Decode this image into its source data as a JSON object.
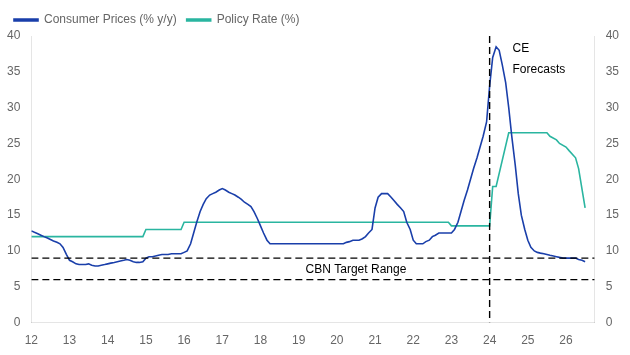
{
  "chart_data": {
    "type": "line",
    "series": [
      {
        "name": "Consumer Prices (% y/y)",
        "color": "#1a3faa",
        "x": [
          12.0,
          12.08,
          12.17,
          12.25,
          12.33,
          12.42,
          12.5,
          12.58,
          12.67,
          12.75,
          12.83,
          12.92,
          13.0,
          13.08,
          13.17,
          13.25,
          13.33,
          13.42,
          13.5,
          13.58,
          13.67,
          13.75,
          13.83,
          13.92,
          14.0,
          14.08,
          14.17,
          14.25,
          14.33,
          14.42,
          14.5,
          14.58,
          14.67,
          14.75,
          14.83,
          14.92,
          15.0,
          15.08,
          15.17,
          15.25,
          15.33,
          15.42,
          15.5,
          15.58,
          15.67,
          15.75,
          15.83,
          15.92,
          16.0,
          16.08,
          16.17,
          16.25,
          16.33,
          16.42,
          16.5,
          16.58,
          16.67,
          16.75,
          16.83,
          16.92,
          17.0,
          17.08,
          17.17,
          17.25,
          17.33,
          17.42,
          17.5,
          17.58,
          17.67,
          17.75,
          17.83,
          17.92,
          18.0,
          18.08,
          18.17,
          18.25,
          18.33,
          18.42,
          18.5,
          18.58,
          18.67,
          18.75,
          18.83,
          18.92,
          19.0,
          19.08,
          19.17,
          19.25,
          19.33,
          19.42,
          19.5,
          19.58,
          19.67,
          19.75,
          19.83,
          19.92,
          20.0,
          20.08,
          20.17,
          20.25,
          20.33,
          20.42,
          20.5,
          20.58,
          20.67,
          20.75,
          20.83,
          20.92,
          21.0,
          21.08,
          21.17,
          21.25,
          21.33,
          21.42,
          21.5,
          21.58,
          21.67,
          21.75,
          21.83,
          21.92,
          22.0,
          22.08,
          22.17,
          22.25,
          22.33,
          22.42,
          22.5,
          22.58,
          22.67,
          22.75,
          22.83,
          22.92,
          23.0,
          23.08,
          23.17,
          23.25,
          23.33,
          23.42,
          23.5,
          23.58,
          23.67,
          23.75,
          23.83,
          23.92,
          24.0,
          24.08,
          24.17,
          24.25,
          24.33,
          24.42,
          24.5,
          24.58,
          24.67,
          24.75,
          24.83,
          24.92,
          25.0,
          25.08,
          25.17,
          25.25,
          25.33,
          25.42,
          25.5,
          25.58,
          25.67,
          25.75,
          25.83,
          25.92,
          26.0,
          26.08,
          26.17,
          26.25,
          26.33,
          26.42,
          26.5
        ],
        "values": [
          12.8,
          12.6,
          12.4,
          12.2,
          12.0,
          11.8,
          11.6,
          11.4,
          11.2,
          11.0,
          10.5,
          9.5,
          8.7,
          8.5,
          8.2,
          8.1,
          8.1,
          8.1,
          8.2,
          8.0,
          7.9,
          7.9,
          8.0,
          8.1,
          8.2,
          8.3,
          8.4,
          8.5,
          8.6,
          8.7,
          8.8,
          8.7,
          8.5,
          8.4,
          8.4,
          8.5,
          9.0,
          9.2,
          9.2,
          9.3,
          9.4,
          9.5,
          9.5,
          9.5,
          9.6,
          9.6,
          9.6,
          9.6,
          9.8,
          10.0,
          11.0,
          12.5,
          14.0,
          15.5,
          16.5,
          17.3,
          17.8,
          18.0,
          18.2,
          18.5,
          18.7,
          18.5,
          18.2,
          18.0,
          17.8,
          17.5,
          17.2,
          16.8,
          16.5,
          16.2,
          15.5,
          14.5,
          13.5,
          12.5,
          11.5,
          11.0,
          11.0,
          11.0,
          11.0,
          11.0,
          11.0,
          11.0,
          11.0,
          11.0,
          11.0,
          11.0,
          11.0,
          11.0,
          11.0,
          11.0,
          11.0,
          11.0,
          11.0,
          11.0,
          11.0,
          11.0,
          11.0,
          11.0,
          11.0,
          11.2,
          11.3,
          11.5,
          11.5,
          11.5,
          11.7,
          12.0,
          12.5,
          13.0,
          16.0,
          17.5,
          18.0,
          18.0,
          18.0,
          17.5,
          17.0,
          16.5,
          16.0,
          15.5,
          14.0,
          13.0,
          11.5,
          11.0,
          11.0,
          11.0,
          11.3,
          11.5,
          12.0,
          12.2,
          12.5,
          12.5,
          12.5,
          12.5,
          12.5,
          13.0,
          14.0,
          15.5,
          17.0,
          18.5,
          20.0,
          21.5,
          23.0,
          24.5,
          26.0,
          28.0,
          33.0,
          37.0,
          38.5,
          38.0,
          36.0,
          33.5,
          30.0,
          26.0,
          22.0,
          18.0,
          15.0,
          13.0,
          11.5,
          10.5,
          10.0,
          9.8,
          9.7,
          9.6,
          9.5,
          9.4,
          9.3,
          9.2,
          9.1,
          9.0,
          9.0,
          9.0,
          9.0,
          9.0,
          8.8,
          8.7,
          8.5
        ]
      },
      {
        "name": "Policy Rate (%)",
        "color": "#2ab5a0",
        "x": [
          12.0,
          12.92,
          13.0,
          13.42,
          13.5,
          14.42,
          14.5,
          14.92,
          15.0,
          15.5,
          15.58,
          15.92,
          16.0,
          16.5,
          16.58,
          22.92,
          23.0,
          23.92,
          24.0,
          24.08,
          24.17,
          24.5,
          24.58,
          25.0,
          25.08,
          25.25,
          25.33,
          25.5,
          25.58,
          25.75,
          25.83,
          26.0,
          26.08,
          26.25,
          26.33,
          26.5
        ],
        "values": [
          12.0,
          12.0,
          12.0,
          12.0,
          12.0,
          12.0,
          12.0,
          12.0,
          13.0,
          13.0,
          13.0,
          13.0,
          14.0,
          14.0,
          14.0,
          14.0,
          13.5,
          13.5,
          13.5,
          19.0,
          19.0,
          26.5,
          26.5,
          26.5,
          26.5,
          26.5,
          26.5,
          26.5,
          26.0,
          25.5,
          25.0,
          24.5,
          24.0,
          23.0,
          21.5,
          16.0
        ]
      }
    ],
    "reference_lines": [
      {
        "axis": "y",
        "value": 9.0,
        "line_style": "dashed",
        "color": "#000000"
      },
      {
        "axis": "y",
        "value": 6.0,
        "line_style": "dashed",
        "color": "#000000"
      },
      {
        "axis": "x",
        "value": 24.0,
        "line_style": "dashed",
        "color": "#000000"
      }
    ],
    "annotations": [
      {
        "text": "CBN Target Range",
        "x": 20.5,
        "y": 7.4
      },
      {
        "text": "CE",
        "x": 24.6,
        "y": 39.0
      },
      {
        "text": "Forecasts",
        "x": 24.6,
        "y": 36.2
      }
    ],
    "xlim": [
      12,
      26.75
    ],
    "xticks": [
      12,
      13,
      14,
      15,
      16,
      17,
      18,
      19,
      20,
      21,
      22,
      23,
      24,
      25,
      26
    ],
    "ylim": [
      0,
      40
    ],
    "yticks": [
      0,
      5,
      10,
      15,
      20,
      25,
      30,
      35,
      40
    ],
    "y2lim": [
      0,
      40
    ],
    "y2ticks": [
      0,
      5,
      10,
      15,
      20,
      25,
      30,
      35,
      40
    ],
    "legend": "upper left",
    "grid": false
  }
}
